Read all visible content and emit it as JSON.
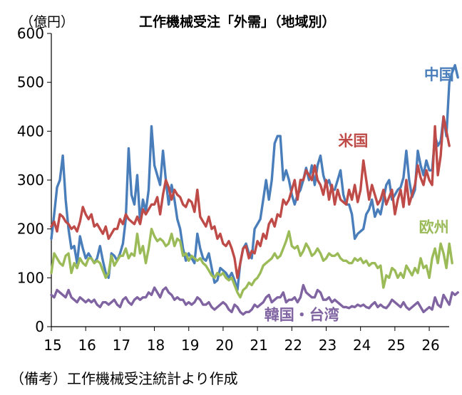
{
  "note": "（備考）工作機械受注統計より作成",
  "chart_data": {
    "type": "line",
    "title": "工作機械受注「外需」（地域別）",
    "unit_label": "（億円）",
    "xlabel": "",
    "ylabel": "",
    "ylim": [
      0,
      600
    ],
    "yticks": [
      0,
      100,
      200,
      300,
      400,
      500,
      600
    ],
    "xlim": [
      2015,
      2026.58
    ],
    "xticks": [
      "15",
      "16",
      "17",
      "18",
      "19",
      "20",
      "21",
      "22",
      "23",
      "24",
      "25",
      "26"
    ],
    "grid": false,
    "x_start": "2015-01",
    "series": [
      {
        "name": "中国",
        "color": "#4a7ebb",
        "values": [
          180,
          230,
          285,
          300,
          350,
          260,
          200,
          160,
          165,
          130,
          185,
          160,
          140,
          150,
          140,
          130,
          140,
          165,
          135,
          110,
          100,
          150,
          145,
          135,
          150,
          170,
          220,
          365,
          270,
          250,
          310,
          215,
          260,
          235,
          280,
          410,
          330,
          310,
          290,
          360,
          300,
          250,
          290,
          260,
          220,
          200,
          160,
          135,
          150,
          140,
          130,
          190,
          160,
          140,
          135,
          150,
          120,
          90,
          95,
          120,
          115,
          110,
          100,
          110,
          95,
          75,
          130,
          160,
          170,
          150,
          140,
          200,
          210,
          220,
          260,
          300,
          260,
          300,
          375,
          390,
          390,
          300,
          320,
          300,
          270,
          250,
          270,
          280,
          300,
          325,
          300,
          330,
          290,
          330,
          350,
          310,
          290,
          300,
          280,
          280,
          300,
          320,
          270,
          250,
          250,
          230,
          180,
          190,
          195,
          200,
          230,
          240,
          260,
          225,
          240,
          230,
          260,
          290,
          300,
          260,
          270,
          280,
          285,
          305,
          360,
          300,
          265,
          280,
          360,
          330,
          310,
          340,
          320,
          320,
          390,
          370,
          380,
          430,
          390,
          500,
          520,
          535,
          510
        ]
      },
      {
        "name": "米国",
        "color": "#be4b48",
        "values": [
          205,
          215,
          195,
          230,
          225,
          215,
          210,
          200,
          205,
          195,
          215,
          245,
          230,
          220,
          230,
          205,
          210,
          200,
          190,
          205,
          180,
          190,
          200,
          200,
          220,
          210,
          230,
          220,
          215,
          210,
          225,
          210,
          240,
          230,
          240,
          250,
          250,
          265,
          230,
          270,
          300,
          285,
          260,
          280,
          270,
          265,
          250,
          245,
          260,
          255,
          235,
          280,
          225,
          215,
          205,
          225,
          200,
          205,
          180,
          190,
          170,
          165,
          175,
          160,
          140,
          100,
          130,
          160,
          165,
          140,
          155,
          150,
          175,
          165,
          190,
          180,
          210,
          220,
          205,
          230,
          225,
          260,
          250,
          260,
          280,
          300,
          260,
          300,
          300,
          320,
          310,
          300,
          330,
          300,
          290,
          270,
          300,
          260,
          290,
          250,
          280,
          260,
          255,
          250,
          280,
          260,
          290,
          255,
          280,
          340,
          300,
          260,
          290,
          270,
          250,
          260,
          280,
          250,
          265,
          280,
          230,
          260,
          280,
          245,
          300,
          250,
          270,
          290,
          330,
          305,
          290,
          320,
          300,
          290,
          410,
          310,
          350,
          430,
          400,
          370
        ]
      },
      {
        "name": "欧州",
        "color": "#9bbb59",
        "values": [
          110,
          150,
          140,
          130,
          125,
          145,
          150,
          110,
          130,
          120,
          140,
          130,
          125,
          140,
          140,
          130,
          135,
          130,
          115,
          100,
          110,
          145,
          125,
          135,
          145,
          145,
          160,
          140,
          150,
          145,
          190,
          150,
          165,
          130,
          160,
          200,
          185,
          175,
          180,
          175,
          165,
          170,
          190,
          165,
          180,
          175,
          145,
          150,
          135,
          145,
          140,
          135,
          140,
          130,
          125,
          115,
          105,
          100,
          110,
          105,
          110,
          100,
          95,
          100,
          85,
          70,
          60,
          75,
          80,
          90,
          85,
          95,
          100,
          110,
          125,
          130,
          135,
          140,
          150,
          140,
          145,
          160,
          175,
          195,
          165,
          160,
          165,
          145,
          155,
          170,
          160,
          145,
          150,
          160,
          150,
          135,
          140,
          150,
          145,
          145,
          150,
          140,
          135,
          135,
          130,
          130,
          140,
          135,
          140,
          130,
          135,
          125,
          130,
          130,
          120,
          125,
          80,
          105,
          100,
          120,
          115,
          100,
          110,
          100,
          125,
          115,
          105,
          120,
          110,
          140,
          120,
          125,
          100,
          140,
          160,
          130,
          170,
          150,
          120,
          170,
          130
        ]
      },
      {
        "name": "韓国・台湾",
        "color": "#8064a2",
        "values": [
          65,
          60,
          75,
          70,
          65,
          60,
          75,
          60,
          55,
          50,
          60,
          55,
          50,
          55,
          50,
          55,
          45,
          40,
          50,
          50,
          45,
          50,
          55,
          45,
          40,
          55,
          60,
          50,
          45,
          55,
          60,
          55,
          60,
          60,
          70,
          65,
          80,
          70,
          60,
          75,
          80,
          70,
          65,
          55,
          60,
          55,
          55,
          45,
          50,
          45,
          50,
          60,
          55,
          45,
          45,
          50,
          40,
          35,
          40,
          45,
          50,
          45,
          35,
          30,
          45,
          40,
          30,
          25,
          30,
          30,
          35,
          45,
          40,
          45,
          50,
          60,
          65,
          50,
          55,
          60,
          60,
          70,
          50,
          55,
          55,
          60,
          50,
          60,
          85,
          70,
          65,
          60,
          60,
          75,
          70,
          55,
          55,
          60,
          50,
          55,
          50,
          45,
          40,
          40,
          38,
          42,
          40,
          45,
          42,
          45,
          40,
          38,
          45,
          50,
          40,
          45,
          40,
          38,
          45,
          55,
          50,
          45,
          40,
          50,
          40,
          35,
          40,
          45,
          50,
          40,
          30,
          35,
          40,
          35,
          60,
          45,
          40,
          65,
          55,
          45,
          70,
          65,
          70
        ]
      }
    ],
    "label_positions": {
      "中国": [
        2025.85,
        505
      ],
      "米国": [
        2023.35,
        370
      ],
      "欧州": [
        2025.7,
        193
      ],
      "韓国・台湾": [
        2021.2,
        14
      ]
    }
  }
}
